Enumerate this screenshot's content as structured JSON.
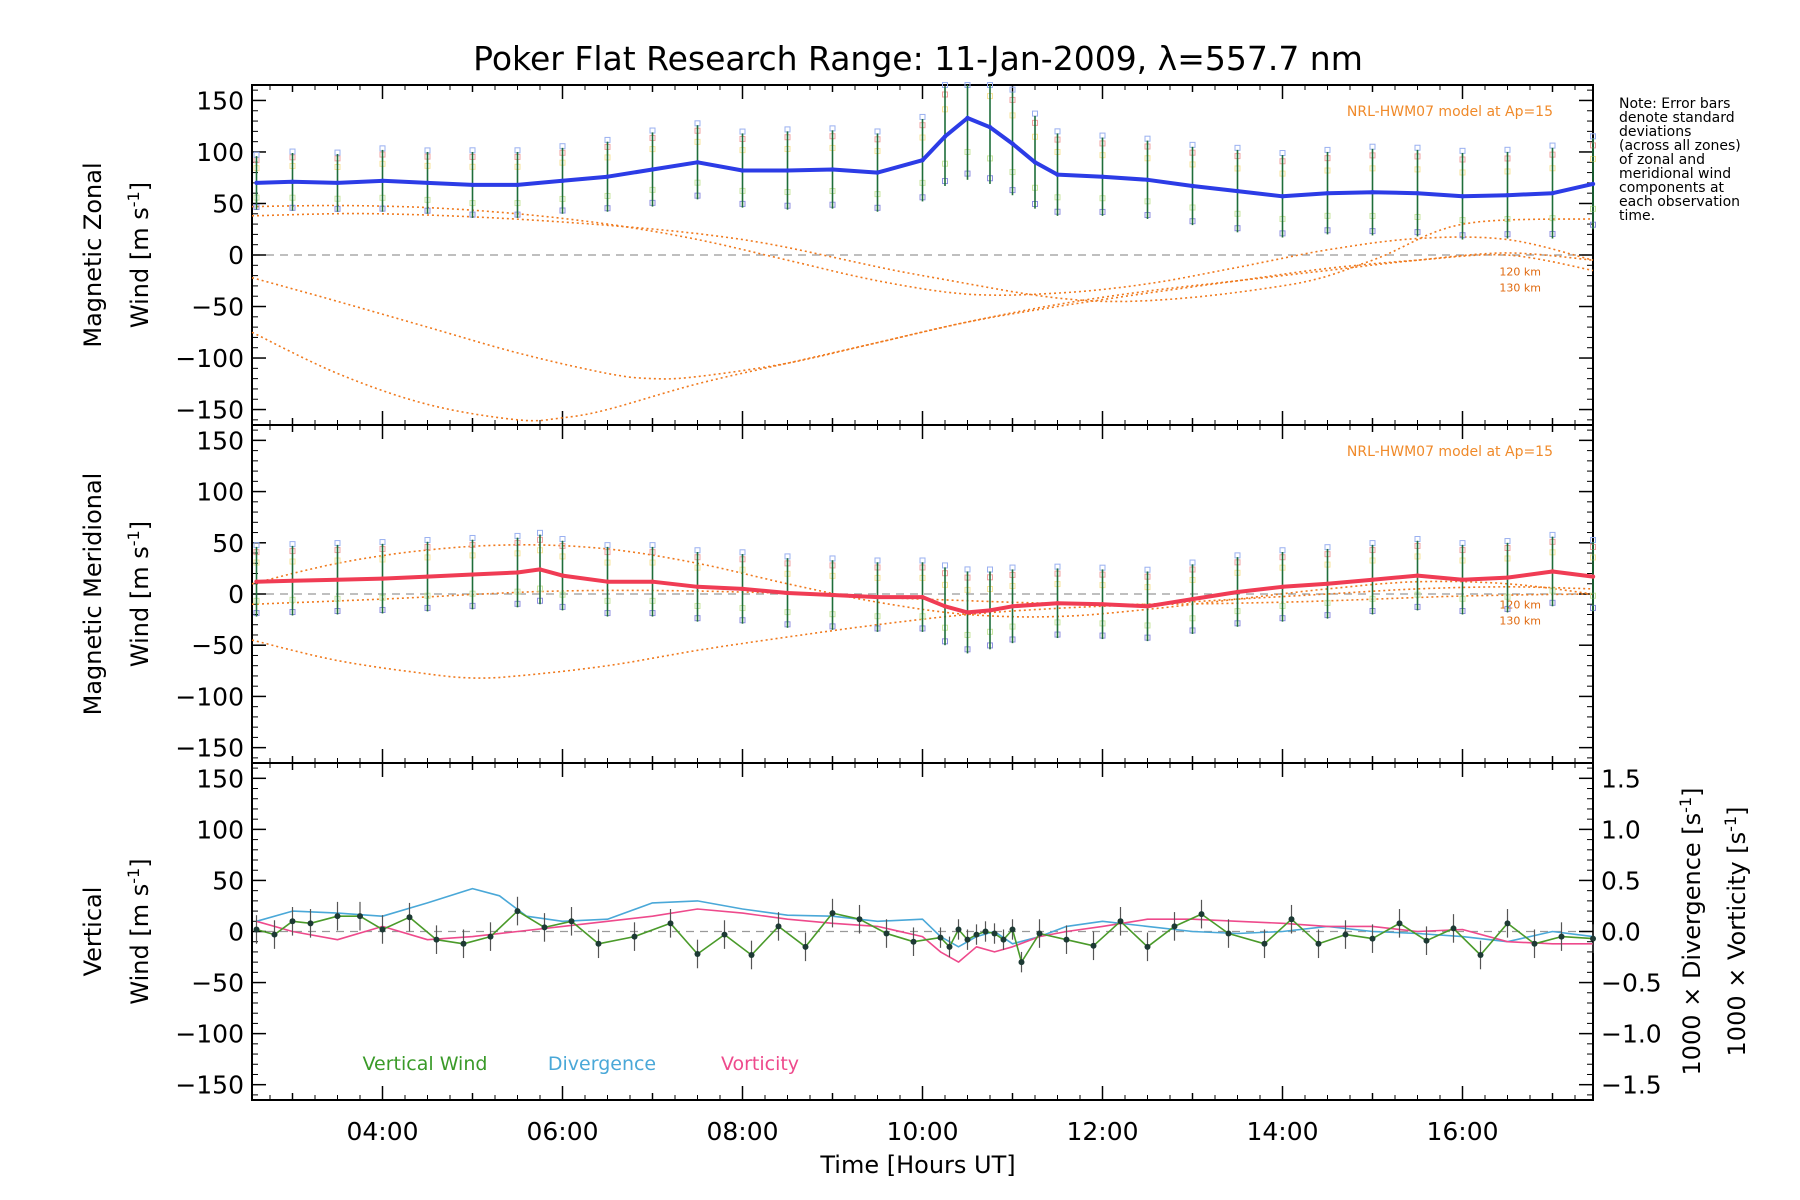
{
  "chart_data": {
    "type": "line",
    "title": "Poker Flat Research Range: 11-Jan-2009, λ=557.7 nm",
    "xlabel": "Time [Hours UT]",
    "x_range_hours": [
      2.55,
      17.45
    ],
    "x_ticks": [
      {
        "hour": 4,
        "label": "04:00"
      },
      {
        "hour": 6,
        "label": "06:00"
      },
      {
        "hour": 8,
        "label": "08:00"
      },
      {
        "hour": 10,
        "label": "10:00"
      },
      {
        "hour": 12,
        "label": "12:00"
      },
      {
        "hour": 14,
        "label": "14:00"
      },
      {
        "hour": 16,
        "label": "16:00"
      }
    ],
    "note": [
      "Note: Error bars",
      "denote standard",
      "deviations",
      "(across all zones)",
      "of zonal and",
      "meridional wind",
      "components at",
      "each observation",
      "time."
    ],
    "panels": [
      {
        "id": "zonal",
        "ylabel_line1": "Magnetic Zonal",
        "ylabel_line2_pre": "Wind [m s",
        "ylabel_sup": "-1",
        "ylabel_post": "]",
        "ylim": [
          -165,
          165
        ],
        "y_ticks": [
          150,
          100,
          50,
          0,
          -50,
          -100,
          -150
        ],
        "y_tick_labels": [
          "150",
          "100",
          "50",
          "0",
          "−50",
          "−100",
          "−150"
        ],
        "model_label": "NRL-HWM07 model at Ap=15",
        "altitude_labels": [
          "120 km",
          "130 km"
        ],
        "series_color": "#2c3ce6",
        "series": {
          "name": "Zonal wind",
          "x": [
            2.6,
            3.0,
            3.5,
            4.0,
            4.5,
            5.0,
            5.5,
            6.0,
            6.5,
            7.0,
            7.5,
            8.0,
            8.5,
            9.0,
            9.5,
            10.0,
            10.25,
            10.5,
            10.75,
            11.0,
            11.25,
            11.5,
            12.0,
            12.5,
            13.0,
            13.5,
            14.0,
            14.5,
            15.0,
            15.5,
            16.0,
            16.5,
            17.0,
            17.45
          ],
          "values": [
            70,
            71,
            70,
            72,
            70,
            68,
            68,
            72,
            76,
            83,
            90,
            82,
            82,
            83,
            80,
            92,
            115,
            133,
            124,
            108,
            90,
            78,
            76,
            73,
            67,
            62,
            57,
            60,
            61,
            60,
            57,
            58,
            60,
            69
          ],
          "errors": [
            26,
            28,
            28,
            30,
            30,
            32,
            32,
            32,
            34,
            36,
            36,
            36,
            38,
            38,
            38,
            40,
            48,
            60,
            55,
            50,
            45,
            40,
            38,
            38,
            38,
            40,
            40,
            40,
            42,
            42,
            42,
            42,
            44,
            44
          ]
        },
        "model_series": [
          {
            "name": "HWM07 zonal a",
            "x": [
              2.55,
              3.5,
              4.5,
              5.5,
              6.5,
              7.5,
              8.5,
              9.5,
              10.5,
              11.5,
              12.5,
              13.5,
              14.5,
              15.5,
              16.5,
              17.45
            ],
            "values": [
              47,
              48,
              46,
              40,
              30,
              15,
              -5,
              -25,
              -38,
              -37,
              -28,
              -12,
              5,
              16,
              15,
              -5
            ]
          },
          {
            "name": "HWM07 zonal b",
            "x": [
              2.55,
              3.5,
              4.5,
              5.5,
              6.5,
              7.0,
              7.5,
              8.5,
              9.5,
              10.5,
              11.5,
              12.5,
              13.5,
              14.5,
              15.5,
              16.5,
              17.45
            ],
            "values": [
              -22,
              -45,
              -70,
              -95,
              -115,
              -120,
              -118,
              -105,
              -85,
              -65,
              -50,
              -37,
              -25,
              -13,
              -5,
              0,
              -15
            ]
          },
          {
            "name": "HWM07 zonal c",
            "x": [
              2.55,
              3.5,
              4.5,
              5.5,
              6.0,
              6.5,
              7.5,
              8.5,
              9.5,
              10.5,
              11.5,
              12.5,
              13.5,
              14.5,
              15.5,
              16.5,
              17.45
            ],
            "values": [
              -75,
              -115,
              -145,
              -160,
              -158,
              -150,
              -125,
              -105,
              -85,
              -65,
              -48,
              -35,
              -25,
              -15,
              -5,
              2,
              -5
            ]
          },
          {
            "name": "HWM07 zonal d",
            "x": [
              2.55,
              4,
              6,
              8,
              10,
              12,
              14,
              15,
              16,
              17.45
            ],
            "values": [
              38,
              40,
              32,
              15,
              -20,
              -45,
              -30,
              -5,
              30,
              35
            ]
          }
        ]
      },
      {
        "id": "meridional",
        "ylabel_line1": "Magnetic Meridional",
        "ylabel_line2_pre": "Wind [m s",
        "ylabel_sup": "-1",
        "ylabel_post": "]",
        "ylim": [
          -165,
          165
        ],
        "y_ticks": [
          150,
          100,
          50,
          0,
          -50,
          -100,
          -150
        ],
        "y_tick_labels": [
          "150",
          "100",
          "50",
          "0",
          "−50",
          "−100",
          "−150"
        ],
        "model_label": "NRL-HWM07 model at Ap=15",
        "altitude_labels": [
          "120 km",
          "130 km"
        ],
        "series_color": "#f03c54",
        "series": {
          "name": "Meridional wind",
          "x": [
            2.6,
            3.0,
            3.5,
            4.0,
            4.5,
            5.0,
            5.5,
            5.75,
            6.0,
            6.5,
            7.0,
            7.5,
            8.0,
            8.5,
            9.0,
            9.5,
            10.0,
            10.25,
            10.5,
            10.75,
            11.0,
            11.5,
            12.0,
            12.5,
            13.0,
            13.5,
            14.0,
            14.5,
            15.0,
            15.5,
            16.0,
            16.5,
            17.0,
            17.45
          ],
          "values": [
            12,
            13,
            14,
            15,
            17,
            19,
            21,
            24,
            18,
            12,
            12,
            7,
            5,
            1,
            -1,
            -3,
            -3,
            -12,
            -18,
            -16,
            -12,
            -9,
            -10,
            -12,
            -5,
            2,
            7,
            10,
            14,
            18,
            14,
            16,
            22,
            17
          ],
          "errors": [
            34,
            34,
            34,
            34,
            34,
            34,
            34,
            34,
            34,
            34,
            34,
            34,
            34,
            34,
            34,
            34,
            34,
            38,
            40,
            38,
            36,
            34,
            34,
            34,
            34,
            34,
            34,
            34,
            34,
            34,
            34,
            34,
            34,
            34
          ]
        },
        "model_series": [
          {
            "name": "HWM07 meridional a",
            "x": [
              2.55,
              3.5,
              4.5,
              5.0,
              5.5,
              6.5,
              7.5,
              8.5,
              9.5,
              10.5,
              11.5,
              12.5,
              13.5,
              14.5,
              15.5,
              16.5,
              17.45
            ],
            "values": [
              -45,
              -65,
              -78,
              -82,
              -80,
              -70,
              -55,
              -42,
              -30,
              -20,
              -14,
              -10,
              -5,
              0,
              5,
              7,
              5
            ]
          },
          {
            "name": "HWM07 meridional b",
            "x": [
              2.55,
              3.5,
              4.5,
              5.5,
              6.5,
              7.5,
              8.5,
              9.5,
              10.5,
              11.5,
              12.5,
              13.5,
              14.5,
              15.5,
              16.5,
              17.45
            ],
            "values": [
              10,
              30,
              43,
              48,
              44,
              30,
              10,
              -8,
              -20,
              -22,
              -15,
              -5,
              5,
              12,
              10,
              0
            ]
          },
          {
            "name": "HWM07 meridional c",
            "x": [
              2.55,
              4,
              6,
              8,
              10,
              12,
              14,
              16,
              17.45
            ],
            "values": [
              -10,
              -5,
              3,
              2,
              -5,
              -10,
              -8,
              -2,
              0
            ]
          }
        ]
      },
      {
        "id": "vertical",
        "ylabel_line1": "Vertical",
        "ylabel_line2_pre": "Wind [m s",
        "ylabel_sup": "-1",
        "ylabel_post": "]",
        "ylabel_color": "#5aa82a",
        "ylim": [
          -165,
          165
        ],
        "y_ticks": [
          150,
          100,
          50,
          0,
          -50,
          -100,
          -150
        ],
        "y_tick_labels": [
          "150",
          "100",
          "50",
          "0",
          "−50",
          "−100",
          "−150"
        ],
        "right_ylim": [
          -1.65,
          1.65
        ],
        "right_ticks": [
          1.5,
          1.0,
          0.5,
          0.0,
          -0.5,
          -1.0,
          -1.5
        ],
        "right_tick_labels": [
          "1.5",
          "1.0",
          "0.5",
          "0.0",
          "−0.5",
          "−1.0",
          "−1.5"
        ],
        "right_label_div_pre": "1000 × Divergence [s",
        "right_label_vort_pre": "1000 × Vorticity [s",
        "right_label_sup": "-1",
        "right_label_post": "]",
        "right_label_div_color": "#4aa8d8",
        "right_label_vort_color": "#ee4a8c",
        "legend": [
          {
            "label": "Vertical Wind",
            "color": "#3a9a28"
          },
          {
            "label": "Divergence",
            "color": "#4aa8d8"
          },
          {
            "label": "Vorticity",
            "color": "#ee4a8c"
          }
        ],
        "vertical_wind": {
          "x": [
            2.6,
            2.8,
            3.0,
            3.2,
            3.5,
            3.75,
            4.0,
            4.3,
            4.6,
            4.9,
            5.2,
            5.5,
            5.8,
            6.1,
            6.4,
            6.8,
            7.2,
            7.5,
            7.8,
            8.1,
            8.4,
            8.7,
            9.0,
            9.3,
            9.6,
            9.9,
            10.2,
            10.3,
            10.4,
            10.5,
            10.6,
            10.7,
            10.8,
            10.9,
            11.0,
            11.1,
            11.3,
            11.6,
            11.9,
            12.2,
            12.5,
            12.8,
            13.1,
            13.4,
            13.8,
            14.1,
            14.4,
            14.7,
            15.0,
            15.3,
            15.6,
            15.9,
            16.2,
            16.5,
            16.8,
            17.1,
            17.45
          ],
          "values": [
            2,
            -3,
            10,
            8,
            15,
            15,
            2,
            14,
            -8,
            -12,
            -5,
            20,
            4,
            10,
            -12,
            -5,
            8,
            -22,
            -3,
            -23,
            5,
            -15,
            18,
            12,
            -2,
            -10,
            -6,
            -15,
            2,
            -8,
            -3,
            0,
            -2,
            -8,
            2,
            -30,
            -2,
            -8,
            -14,
            10,
            -15,
            5,
            17,
            -2,
            -12,
            12,
            -12,
            -3,
            -7,
            8,
            -9,
            3,
            -23,
            8,
            -12,
            -5,
            -7
          ],
          "errors": [
            14,
            14,
            14,
            14,
            14,
            14,
            14,
            14,
            14,
            14,
            14,
            14,
            14,
            14,
            14,
            14,
            14,
            14,
            14,
            14,
            14,
            14,
            14,
            14,
            14,
            14,
            10,
            10,
            10,
            10,
            10,
            10,
            10,
            10,
            10,
            10,
            14,
            14,
            14,
            14,
            14,
            14,
            14,
            14,
            14,
            14,
            14,
            14,
            14,
            14,
            14,
            14,
            14,
            14,
            14,
            14,
            14
          ]
        },
        "divergence": {
          "x": [
            2.6,
            3.0,
            3.5,
            4.0,
            4.5,
            5.0,
            5.3,
            5.6,
            6.0,
            6.5,
            7.0,
            7.5,
            8.0,
            8.5,
            9.0,
            9.5,
            10.0,
            10.2,
            10.4,
            10.6,
            10.8,
            11.0,
            11.3,
            11.6,
            12.0,
            12.5,
            13.0,
            13.5,
            14.0,
            14.5,
            15.0,
            15.5,
            16.0,
            16.5,
            17.0,
            17.45
          ],
          "values": [
            0.1,
            0.2,
            0.18,
            0.15,
            0.28,
            0.42,
            0.35,
            0.15,
            0.1,
            0.12,
            0.28,
            0.3,
            0.22,
            0.16,
            0.15,
            0.1,
            0.12,
            -0.05,
            -0.15,
            -0.05,
            0.0,
            -0.12,
            -0.05,
            0.05,
            0.1,
            0.05,
            0.0,
            -0.02,
            0.0,
            0.05,
            0.0,
            -0.02,
            -0.05,
            -0.1,
            0.0,
            -0.05
          ]
        },
        "vorticity": {
          "x": [
            2.6,
            3.0,
            3.5,
            4.0,
            4.5,
            5.0,
            5.5,
            6.0,
            6.5,
            7.0,
            7.5,
            8.0,
            8.5,
            9.0,
            9.5,
            10.0,
            10.2,
            10.4,
            10.6,
            10.8,
            11.0,
            11.3,
            11.6,
            12.0,
            12.5,
            13.0,
            13.5,
            14.0,
            14.5,
            15.0,
            15.5,
            16.0,
            16.5,
            17.0,
            17.45
          ],
          "values": [
            0.1,
            0.0,
            -0.08,
            0.05,
            -0.08,
            -0.05,
            0.0,
            0.05,
            0.1,
            0.15,
            0.22,
            0.18,
            0.12,
            0.08,
            0.05,
            -0.05,
            -0.2,
            -0.3,
            -0.15,
            -0.2,
            -0.15,
            -0.05,
            0.0,
            0.05,
            0.12,
            0.12,
            0.1,
            0.08,
            0.05,
            0.05,
            0.0,
            0.02,
            -0.1,
            -0.12,
            -0.12
          ]
        }
      }
    ]
  }
}
